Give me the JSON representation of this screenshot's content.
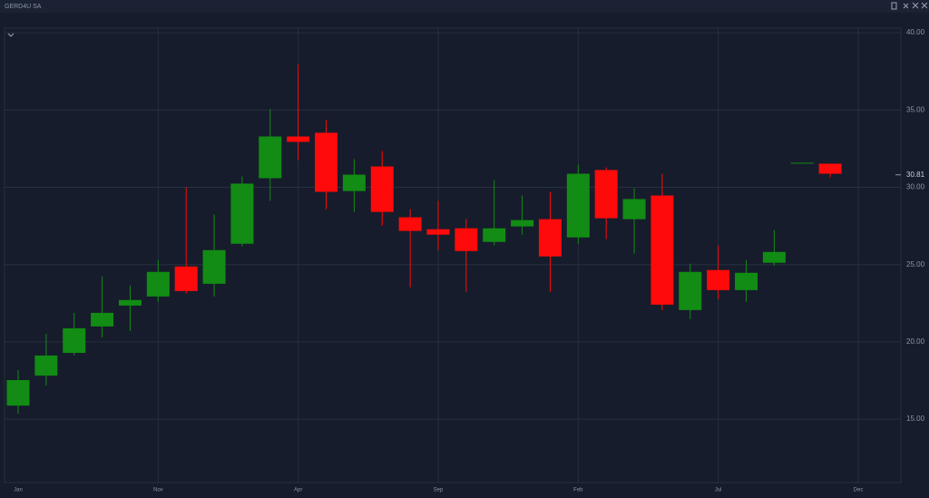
{
  "chart_data": {
    "type": "candlestick",
    "title": "GERD4U SA",
    "categories": [
      "Jan",
      null,
      null,
      null,
      null,
      "Nov",
      null,
      null,
      null,
      null,
      "Apr",
      null,
      null,
      null,
      null,
      "Sep",
      null,
      null,
      null,
      null,
      "Feb",
      null,
      null,
      null,
      null,
      "Jul",
      null,
      null,
      null,
      null,
      "Dec"
    ],
    "open": [
      15.88,
      17.82,
      19.29,
      21.0,
      22.35,
      22.94,
      24.88,
      23.76,
      26.35,
      30.59,
      33.29,
      33.53,
      29.76,
      31.35,
      28.06,
      27.29,
      27.35,
      26.47,
      27.47,
      27.94,
      26.76,
      31.12,
      27.94,
      29.47,
      22.06,
      24.65,
      23.35,
      25.12,
      31.59,
      31.53,
      null
    ],
    "high": [
      18.18,
      20.53,
      21.88,
      24.24,
      23.65,
      25.29,
      30.0,
      28.24,
      30.71,
      35.06,
      37.94,
      34.35,
      31.82,
      32.35,
      28.59,
      29.12,
      27.94,
      30.47,
      29.47,
      29.71,
      31.47,
      31.29,
      29.94,
      30.88,
      25.06,
      26.24,
      25.29,
      27.24,
      31.59,
      31.53,
      null
    ],
    "low": [
      15.35,
      17.18,
      19.12,
      20.29,
      20.71,
      22.59,
      23.12,
      22.94,
      26.18,
      29.12,
      31.76,
      28.59,
      28.41,
      27.53,
      23.53,
      25.94,
      23.24,
      26.24,
      26.94,
      23.24,
      26.35,
      26.65,
      25.71,
      22.06,
      21.47,
      22.76,
      22.59,
      24.94,
      31.59,
      30.65,
      null
    ],
    "close": [
      17.53,
      19.12,
      20.88,
      21.88,
      22.71,
      24.53,
      23.29,
      25.94,
      30.24,
      33.29,
      32.94,
      29.71,
      30.82,
      28.41,
      27.18,
      26.94,
      25.88,
      27.35,
      27.88,
      25.53,
      30.88,
      28.0,
      29.24,
      22.41,
      24.53,
      23.35,
      24.47,
      25.82,
      31.59,
      30.88,
      null
    ],
    "up_color": "#128c14",
    "down_color": "#ff0a0a",
    "ylim": [
      10.9,
      40.3
    ],
    "yticks": [
      {
        "value": 15,
        "label": "15.00"
      },
      {
        "value": 20,
        "label": "20.00"
      },
      {
        "value": 25,
        "label": "25.00"
      },
      {
        "value": 30,
        "label": "30.00"
      },
      {
        "value": 35,
        "label": "35.00"
      },
      {
        "value": 40,
        "label": "40.00"
      }
    ],
    "last_price": 30.81,
    "grid": true
  }
}
